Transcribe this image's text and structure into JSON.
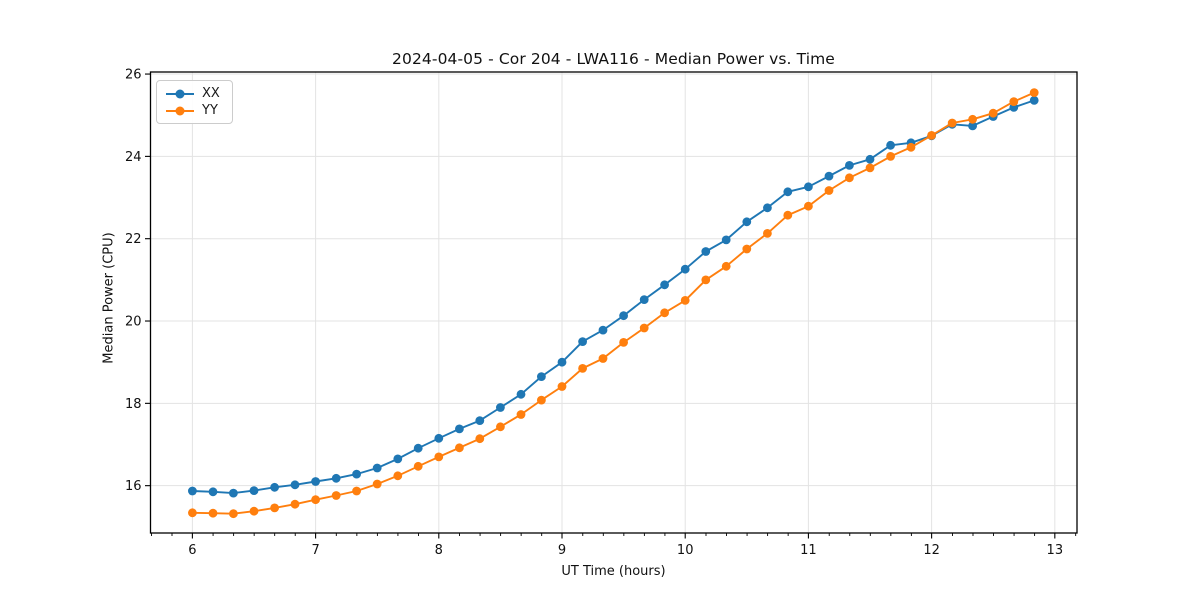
{
  "chart_data": {
    "type": "line",
    "title": "2024-04-05 - Cor 204 - LWA116 - Median Power vs. Time",
    "xlabel": "UT Time (hours)",
    "ylabel": "Median Power (CPU)",
    "xlim": [
      5.66,
      13.18
    ],
    "ylim": [
      14.85,
      26.05
    ],
    "xticks": [
      6,
      7,
      8,
      9,
      10,
      11,
      12,
      13
    ],
    "yticks": [
      16,
      18,
      20,
      22,
      24,
      26
    ],
    "x_minor_step_hours": 0.1667,
    "grid": true,
    "grid_color": "#e3e3e3",
    "axis_color": "#000000",
    "text_color": "#111111",
    "legend_position": "upper-left",
    "marker": "circle",
    "x": [
      6.0,
      6.167,
      6.333,
      6.5,
      6.667,
      6.833,
      7.0,
      7.167,
      7.333,
      7.5,
      7.667,
      7.833,
      8.0,
      8.167,
      8.333,
      8.5,
      8.667,
      8.833,
      9.0,
      9.167,
      9.333,
      9.5,
      9.667,
      9.833,
      10.0,
      10.167,
      10.333,
      10.5,
      10.667,
      10.833,
      11.0,
      11.167,
      11.333,
      11.5,
      11.667,
      11.833,
      12.0,
      12.167,
      12.333,
      12.5,
      12.667,
      12.833
    ],
    "series": [
      {
        "name": "XX",
        "color": "#1f77b4",
        "values": [
          15.87,
          15.85,
          15.82,
          15.88,
          15.96,
          16.02,
          16.1,
          16.18,
          16.28,
          16.43,
          16.65,
          16.91,
          17.15,
          17.38,
          17.58,
          17.9,
          18.22,
          18.65,
          19.0,
          19.5,
          19.78,
          20.13,
          20.52,
          20.88,
          21.26,
          21.69,
          21.97,
          22.41,
          22.75,
          23.14,
          23.26,
          23.52,
          23.78,
          23.93,
          24.27,
          24.33,
          24.5,
          24.78,
          24.74,
          24.97,
          25.19,
          25.36
        ]
      },
      {
        "name": "YY",
        "color": "#ff7f0e",
        "values": [
          15.34,
          15.33,
          15.32,
          15.38,
          15.46,
          15.55,
          15.66,
          15.76,
          15.87,
          16.04,
          16.24,
          16.47,
          16.7,
          16.92,
          17.14,
          17.43,
          17.73,
          18.08,
          18.41,
          18.85,
          19.09,
          19.48,
          19.83,
          20.2,
          20.5,
          21.0,
          21.33,
          21.75,
          22.13,
          22.57,
          22.79,
          23.17,
          23.48,
          23.72,
          24.0,
          24.22,
          24.51,
          24.81,
          24.9,
          25.05,
          25.33,
          25.55
        ]
      }
    ]
  }
}
